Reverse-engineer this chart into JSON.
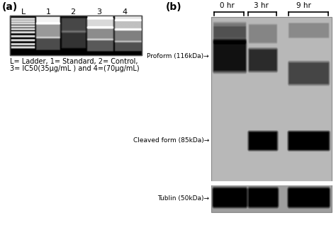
{
  "fig_width": 4.74,
  "fig_height": 3.52,
  "bg_color": "#ffffff",
  "panel_a_label": "(a)",
  "panel_b_label": "(b)",
  "caption_line1": "L= Ladder, 1= Standard, 2= Control,",
  "caption_line2": "3= IC50(35μg/mL ) and 4=(70μg/mL)",
  "time_labels": [
    "0 hr",
    "3 hr",
    "9 hr"
  ],
  "lane_labels": [
    "L",
    "1",
    "2",
    "3",
    "4"
  ],
  "proform_label": "Proform (116kDa)→",
  "cleaved_label": "Cleaved form (85kDa)→",
  "tublin_label": "Tublin (50kDa)→"
}
